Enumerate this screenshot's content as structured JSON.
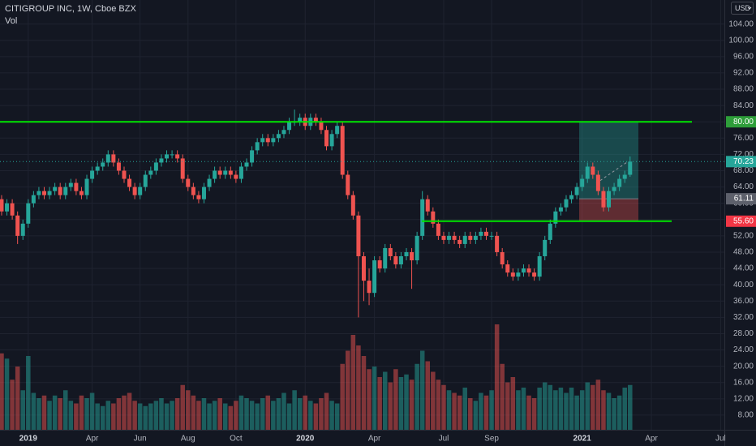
{
  "chart_data": {
    "type": "candlestick",
    "title": "CITIGROUP INC, 1W, Cboe BZX",
    "subtitle": "Vol",
    "currency": "USD",
    "categories": [
      null,
      null,
      null,
      null,
      null,
      "2019",
      null,
      null,
      null,
      null,
      null,
      null,
      null,
      null,
      null,
      null,
      null,
      "Apr",
      null,
      null,
      null,
      null,
      null,
      null,
      null,
      null,
      "Jun",
      null,
      null,
      null,
      null,
      null,
      null,
      null,
      null,
      "Aug",
      null,
      null,
      null,
      null,
      null,
      null,
      null,
      null,
      "Oct",
      null,
      null,
      null,
      null,
      null,
      null,
      null,
      null,
      null,
      null,
      null,
      null,
      "2020",
      null,
      null,
      null,
      null,
      null,
      null,
      null,
      null,
      null,
      null,
      null,
      null,
      "Apr",
      null,
      null,
      null,
      null,
      null,
      null,
      null,
      null,
      null,
      null,
      null,
      null,
      "Jul",
      null,
      null,
      null,
      null,
      null,
      null,
      null,
      null,
      "Sep",
      null,
      null,
      null,
      null,
      null,
      null,
      null,
      null,
      null,
      null,
      null,
      null,
      null,
      null,
      null,
      null,
      "2021",
      null,
      null,
      null,
      null,
      null,
      null,
      null,
      null,
      null,
      null,
      null,
      null,
      "Apr",
      null,
      null,
      null,
      null,
      null,
      null,
      null,
      null,
      null,
      null,
      null,
      null,
      "Jul"
    ],
    "open": [
      61,
      58,
      60,
      57,
      52,
      55,
      60,
      62,
      63,
      62,
      63,
      64,
      62,
      64,
      65,
      63,
      62,
      66,
      68,
      69,
      70,
      72,
      70,
      68,
      66,
      64,
      62,
      64,
      67,
      68,
      70,
      71,
      72,
      72,
      71,
      66,
      64,
      62,
      61,
      64,
      66,
      68,
      67,
      68,
      67,
      66,
      69,
      70,
      73,
      75,
      76,
      75,
      76,
      77,
      78,
      80,
      80,
      81,
      79,
      81,
      80,
      78,
      74,
      77,
      79,
      67,
      62,
      57,
      47,
      41,
      38,
      46,
      44,
      49,
      47,
      45,
      47,
      48,
      46,
      52,
      61,
      58,
      55,
      52,
      51,
      52,
      51,
      50,
      52,
      51,
      52,
      53,
      52,
      52,
      48,
      45,
      43,
      42,
      43,
      44,
      43,
      42,
      47,
      51,
      55,
      58,
      59,
      61,
      62,
      64,
      66,
      69,
      67,
      63,
      59,
      63,
      64,
      66,
      67,
      null,
      null,
      null,
      null,
      null,
      null,
      null,
      null,
      null,
      null,
      null,
      null,
      null,
      null,
      null,
      null,
      null
    ],
    "high": [
      62,
      61,
      61,
      58,
      56,
      61,
      63,
      64,
      64,
      64,
      65,
      65,
      65,
      66,
      66,
      64,
      67,
      69,
      70,
      71,
      73,
      73,
      71,
      69,
      67,
      65,
      65,
      68,
      69,
      71,
      72,
      73,
      73,
      73,
      72,
      67,
      65,
      63,
      65,
      67,
      69,
      69,
      69,
      69,
      68,
      70,
      71,
      74,
      76,
      77,
      77,
      77,
      78,
      79,
      81,
      83,
      82,
      82,
      82,
      82,
      81,
      79,
      78,
      80,
      80,
      68,
      63,
      58,
      48,
      44,
      47,
      47,
      50,
      50,
      48,
      48,
      49,
      49,
      53,
      63,
      62,
      59,
      56,
      53,
      53,
      53,
      52,
      53,
      53,
      53,
      54,
      54,
      53,
      53,
      49,
      46,
      44,
      44,
      45,
      45,
      44,
      48,
      52,
      56,
      59,
      60,
      62,
      63,
      65,
      67,
      70,
      70,
      68,
      64,
      64,
      65,
      67,
      68,
      71.5,
      null,
      null,
      null,
      null,
      null,
      null,
      null,
      null,
      null,
      null,
      null,
      null,
      null,
      null,
      null,
      null,
      null
    ],
    "low": [
      57,
      57,
      56,
      50,
      51,
      54,
      59,
      61,
      61,
      61,
      62,
      61,
      61,
      63,
      62,
      61,
      61,
      65,
      67,
      68,
      69,
      69,
      67,
      65,
      63,
      61,
      61,
      63,
      66,
      67,
      69,
      70,
      71,
      70,
      65,
      63,
      61,
      60,
      60,
      63,
      65,
      66,
      66,
      66,
      65,
      65,
      68,
      69,
      72,
      74,
      74,
      74,
      75,
      76,
      77,
      79,
      79,
      78,
      78,
      79,
      77,
      73,
      73,
      76,
      66,
      61,
      56,
      32,
      36,
      35,
      37,
      43,
      43,
      46,
      44,
      44,
      46,
      39,
      45,
      51,
      57,
      54,
      51,
      50,
      50,
      50,
      49,
      49,
      50,
      50,
      51,
      51,
      51,
      47,
      44,
      42,
      41,
      41,
      42,
      42,
      41,
      41,
      46,
      50,
      54,
      57,
      58,
      60,
      61,
      63,
      65,
      66,
      62,
      58,
      58,
      62,
      63,
      65,
      66.5,
      null,
      null,
      null,
      null,
      null,
      null,
      null,
      null,
      null,
      null,
      null,
      null,
      null,
      null,
      null,
      null,
      null
    ],
    "close": [
      58,
      60,
      57,
      52,
      55,
      60,
      62,
      63,
      62,
      63,
      64,
      62,
      64,
      65,
      63,
      62,
      66,
      68,
      69,
      70,
      72,
      70,
      68,
      66,
      64,
      62,
      64,
      67,
      68,
      70,
      71,
      72,
      72,
      71,
      66,
      64,
      62,
      61,
      64,
      66,
      68,
      67,
      68,
      67,
      66,
      69,
      70,
      73,
      75,
      76,
      75,
      76,
      77,
      78,
      80,
      80,
      81,
      79,
      81,
      80,
      78,
      74,
      77,
      79,
      67,
      62,
      57,
      47,
      41,
      38,
      46,
      44,
      49,
      47,
      45,
      47,
      48,
      46,
      52,
      61,
      58,
      55,
      52,
      51,
      52,
      51,
      50,
      52,
      51,
      52,
      53,
      52,
      52,
      48,
      45,
      43,
      42,
      43,
      44,
      43,
      42,
      47,
      51,
      55,
      58,
      59,
      61,
      62,
      64,
      66,
      69,
      67,
      63,
      59,
      63,
      64,
      66,
      67,
      70.23,
      null,
      null,
      null,
      null,
      null,
      null,
      null,
      null,
      null,
      null,
      null,
      null,
      null,
      null,
      null,
      null,
      null
    ],
    "volume": [
      290,
      270,
      190,
      240,
      150,
      280,
      140,
      120,
      130,
      110,
      130,
      120,
      150,
      110,
      100,
      130,
      120,
      140,
      100,
      90,
      110,
      100,
      120,
      130,
      140,
      110,
      100,
      90,
      100,
      110,
      120,
      100,
      110,
      120,
      170,
      150,
      130,
      110,
      120,
      100,
      110,
      120,
      100,
      90,
      110,
      130,
      120,
      110,
      100,
      120,
      130,
      110,
      120,
      140,
      100,
      150,
      120,
      130,
      110,
      100,
      120,
      140,
      110,
      100,
      250,
      300,
      360,
      320,
      280,
      230,
      240,
      200,
      220,
      180,
      230,
      200,
      210,
      190,
      250,
      300,
      260,
      220,
      190,
      170,
      150,
      140,
      130,
      160,
      120,
      110,
      140,
      130,
      150,
      400,
      250,
      180,
      200,
      150,
      160,
      130,
      120,
      160,
      180,
      170,
      150,
      160,
      140,
      160,
      130,
      150,
      180,
      170,
      190,
      150,
      140,
      120,
      130,
      160,
      170,
      null,
      null,
      null,
      null,
      null,
      null,
      null,
      null,
      null,
      null,
      null,
      null,
      null,
      null,
      null,
      null,
      null
    ],
    "up_color": "#26a69a",
    "down_color": "#ef5350",
    "ylim": [
      4.4,
      109.9
    ],
    "yticks": [
      {
        "value": 8,
        "label": "8.00"
      },
      {
        "value": 12,
        "label": "12.00"
      },
      {
        "value": 16,
        "label": "16.00"
      },
      {
        "value": 20,
        "label": "20.00"
      },
      {
        "value": 24,
        "label": "24.00"
      },
      {
        "value": 28,
        "label": "28.00"
      },
      {
        "value": 32,
        "label": "32.00"
      },
      {
        "value": 36,
        "label": "36.00"
      },
      {
        "value": 40,
        "label": "40.00"
      },
      {
        "value": 44,
        "label": "44.00"
      },
      {
        "value": 48,
        "label": "48.00"
      },
      {
        "value": 52,
        "label": "52.00"
      },
      {
        "value": 56,
        "label": "56.00"
      },
      {
        "value": 60,
        "label": "60.00"
      },
      {
        "value": 64,
        "label": "64.00"
      },
      {
        "value": 68,
        "label": "68.00"
      },
      {
        "value": 72,
        "label": "72.00"
      },
      {
        "value": 76,
        "label": "76.00"
      },
      {
        "value": 80,
        "label": "80.00"
      },
      {
        "value": 84,
        "label": "84.00"
      },
      {
        "value": 88,
        "label": "88.00"
      },
      {
        "value": 92,
        "label": "92.00"
      },
      {
        "value": 96,
        "label": "96.00"
      },
      {
        "value": 100,
        "label": "100.00"
      },
      {
        "value": 104,
        "label": "104.00"
      }
    ],
    "grid": true,
    "hlines": [
      {
        "value": 80,
        "color": "#00e600"
      },
      {
        "value": 55.6,
        "color": "#00e600"
      }
    ],
    "position": {
      "target": 80,
      "entry": 61.11,
      "stop": 55.6
    },
    "price_tags": [
      {
        "value": 80,
        "label": "80.00",
        "color": "#2e9e3a"
      },
      {
        "value": 70.23,
        "label": "70.23",
        "color": "#26a69a"
      },
      {
        "value": 61.11,
        "label": "61.11",
        "color": "#5d606b"
      },
      {
        "value": 55.6,
        "label": "55.60",
        "color": "#f23645"
      }
    ]
  }
}
